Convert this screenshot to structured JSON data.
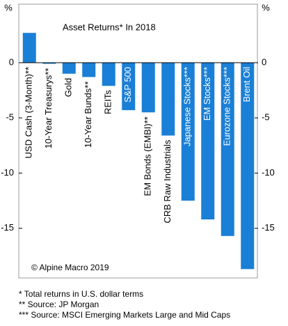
{
  "chart_data": {
    "type": "bar",
    "title": "Asset Returns* In 2018",
    "y_unit": "%",
    "categories": [
      "USD Cash (3-Month)**",
      "10-Year Treasurys**",
      "Gold",
      "10-Year Bunds**",
      "REITs",
      "S&P 500",
      "EM Bonds (EMBI)**",
      "CRB Raw Industrials",
      "Japanese Stocks***",
      "EM Stocks***",
      "Eurozone Stocks***",
      "Brent Oil"
    ],
    "values": [
      2.7,
      -0.1,
      -1.0,
      -1.3,
      -2.1,
      -4.3,
      -4.5,
      -6.6,
      -12.5,
      -14.2,
      -15.7,
      -18.7
    ],
    "color": "#1a7fd6",
    "ylim": [
      -19.5,
      5.3
    ],
    "yticks": [
      0,
      -5,
      -10,
      -15
    ],
    "annotation": "© Alpine Macro 2019",
    "footnotes": [
      "* Total returns in U.S. dollar terms",
      "** Source: JP Morgan",
      "*** Source: MSCI Emerging Markets Large and Mid Caps"
    ]
  }
}
